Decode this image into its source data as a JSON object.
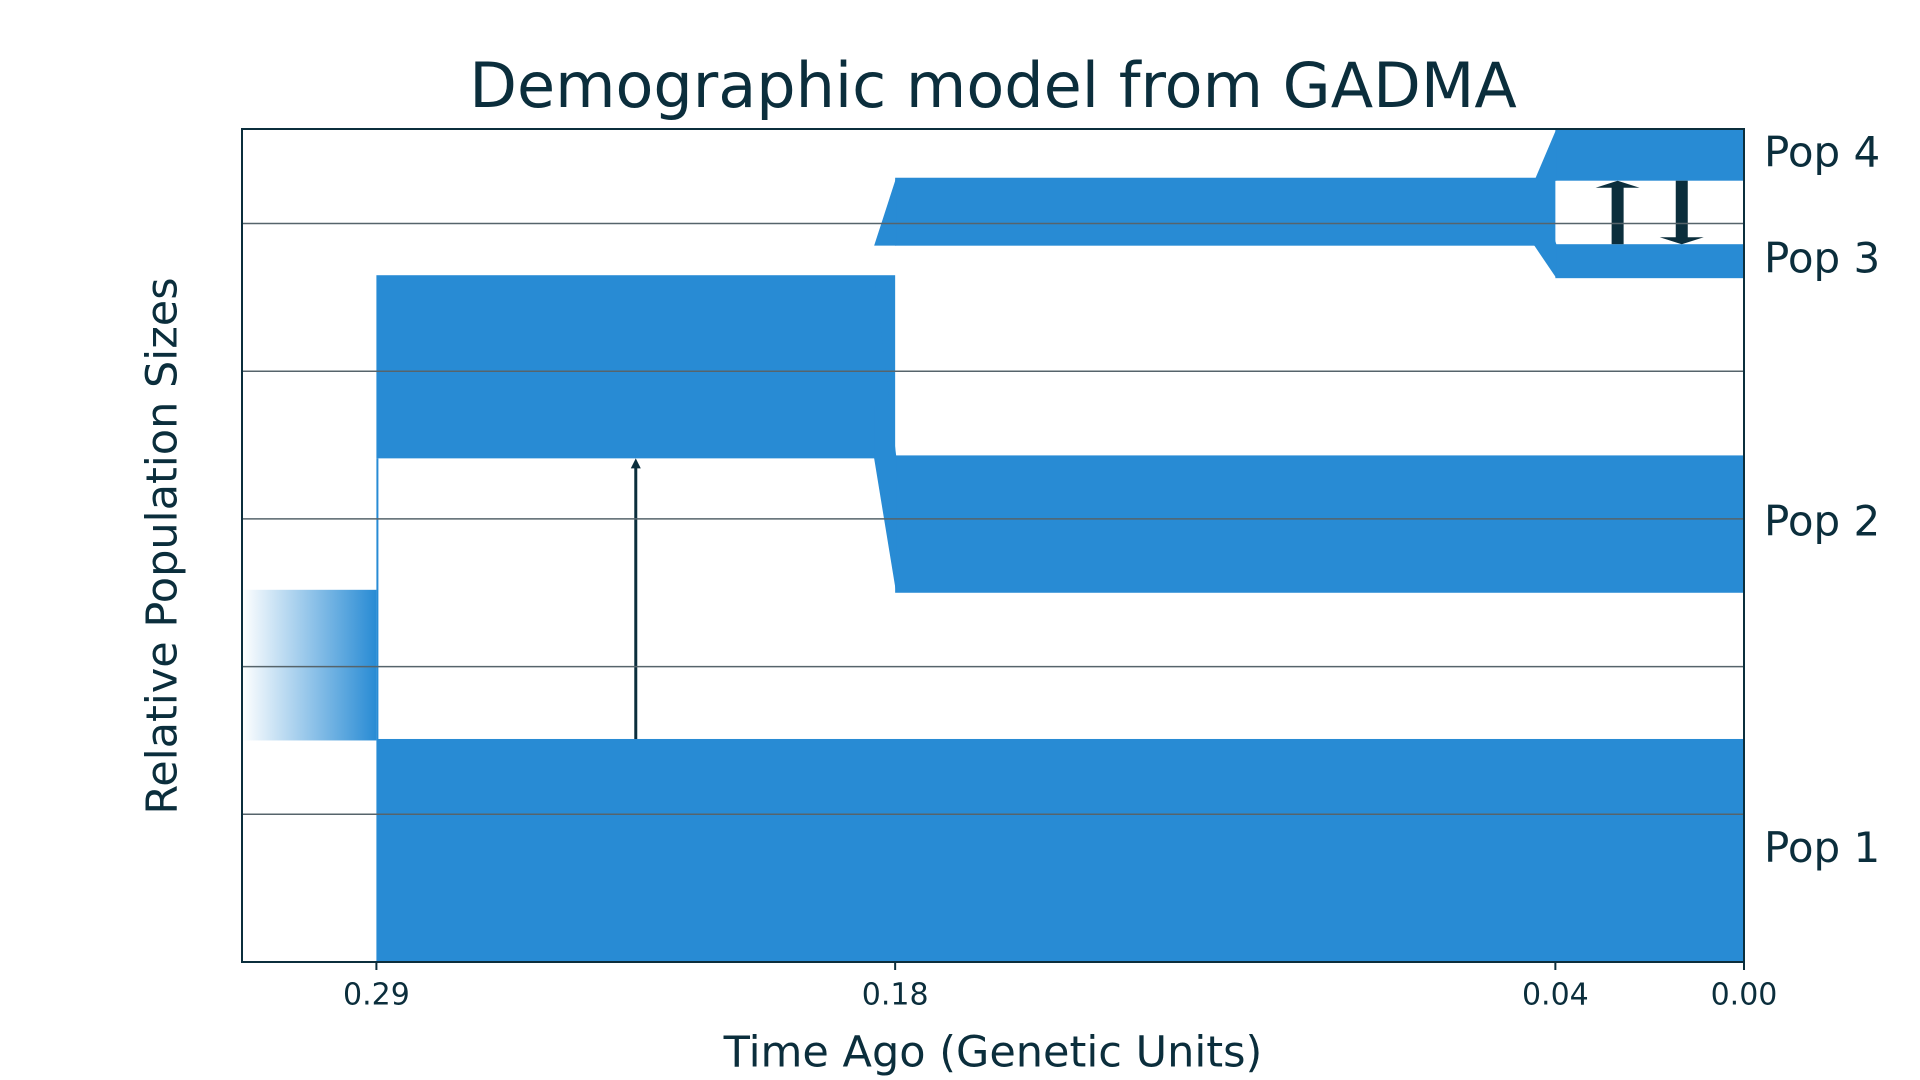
{
  "chart_data": {
    "type": "demographic",
    "title": "Demographic model from GADMA",
    "x_label": "Time Ago (Genetic Units)",
    "y_label": "Relative Population Sizes",
    "color": "#288bd4",
    "xlim": [
      0.3185,
      0
    ],
    "xticks": [
      0.29,
      0.18,
      0.04,
      {
        "value": 0,
        "label": "0.00"
      }
    ],
    "ylim": [
      0,
      5.64
    ],
    "yticks": [
      1,
      2,
      3,
      4,
      5
    ],
    "grid": true,
    "ancestral": {
      "start": 0.3185,
      "end": 0.29,
      "bottom": 1.5,
      "size": 1.02
    },
    "populations": [
      {
        "name": "Pop 1",
        "epochs": [
          {
            "start": 0.29,
            "end": 0,
            "bottom": 0,
            "size": 1.51
          }
        ]
      },
      {
        "name": "Pop 2",
        "epochs": [
          {
            "start": 0.29,
            "end": 0.18,
            "bottom": 3.41,
            "size": 1.24
          },
          {
            "start": 0.18,
            "end": 0,
            "bottom": 2.5,
            "size": 0.93
          }
        ]
      },
      {
        "name": "Pop 3",
        "epochs": [
          {
            "start": 0.18,
            "end": 0.04,
            "bottom": 4.85,
            "size": 0.46
          },
          {
            "start": 0.04,
            "end": 0,
            "bottom": 4.63,
            "size": 0.23
          }
        ]
      },
      {
        "name": "Pop 4",
        "epochs": [
          {
            "start": 0.04,
            "end": 0,
            "bottom": 5.29,
            "size": 0.35
          }
        ]
      }
    ]
  }
}
